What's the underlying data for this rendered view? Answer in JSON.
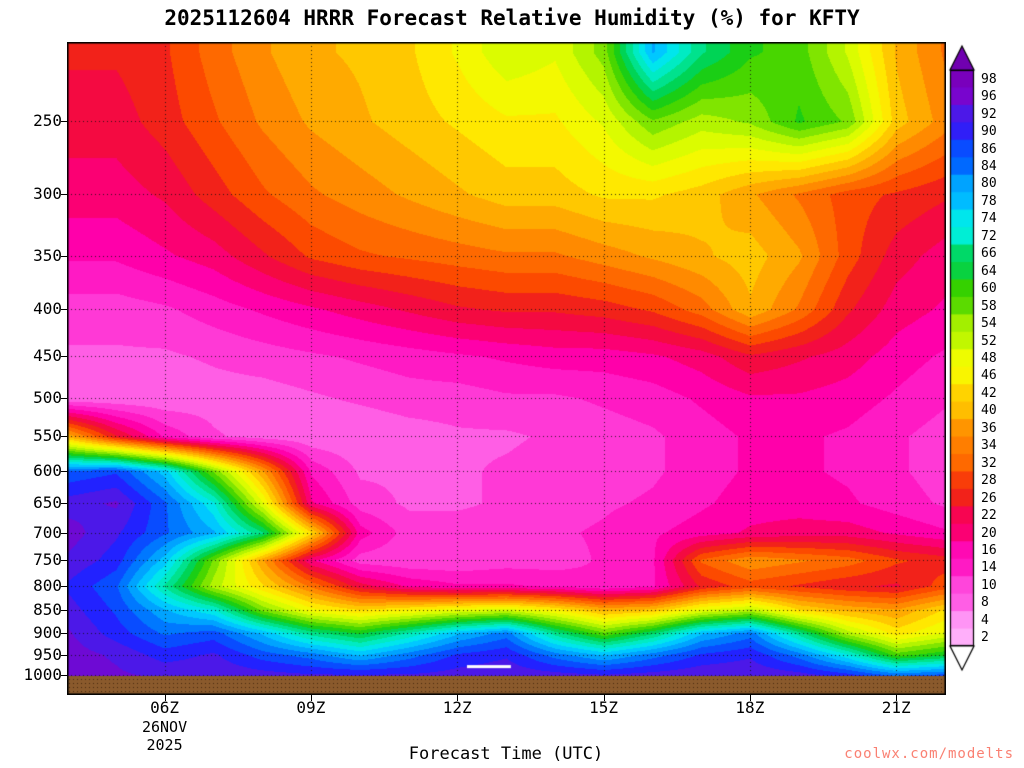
{
  "page": {
    "background": "#ffffff",
    "watermark": "coolwx.com/modelts",
    "watermark_color": "#fa8072"
  },
  "chart": {
    "title": "2025112604 HRRR Forecast Relative Humidity (%) for KFTY",
    "x_axis": {
      "title": "Forecast Time (UTC)",
      "tick_labels": [
        "06Z",
        "09Z",
        "12Z",
        "15Z",
        "18Z",
        "21Z"
      ],
      "date_lines": [
        "26NOV",
        "2025"
      ],
      "date_under_label": "06Z"
    },
    "y_axis": {
      "tick_labels": [
        "250",
        "300",
        "350",
        "400",
        "450",
        "500",
        "550",
        "600",
        "650",
        "700",
        "750",
        "800",
        "850",
        "900",
        "950",
        "1000"
      ]
    },
    "ground_color": "#8a5a2c",
    "ground_stipple_color": "#46290f"
  },
  "chart_data": {
    "type": "heatmap",
    "title": "2025112604 HRRR Forecast Relative Humidity (%) for KFTY",
    "xlabel": "Forecast Time (UTC)",
    "ylabel": "",
    "value_units": "%",
    "x_range_hours": [
      4,
      22
    ],
    "x_tick_hours": [
      6,
      9,
      12,
      15,
      18,
      21
    ],
    "x_tick_labels": [
      "06Z",
      "09Z",
      "12Z",
      "15Z",
      "18Z",
      "21Z"
    ],
    "pressure_range": [
      205,
      1000
    ],
    "y_tick_values": [
      250,
      300,
      350,
      400,
      450,
      500,
      550,
      600,
      650,
      700,
      750,
      800,
      850,
      900,
      950,
      1000
    ],
    "x_hours": [
      4,
      5,
      6,
      7,
      8,
      9,
      10,
      11,
      12,
      13,
      14,
      15,
      16,
      17,
      18,
      19,
      20,
      21,
      22
    ],
    "pressure_levels": [
      210,
      250,
      300,
      350,
      400,
      450,
      500,
      550,
      600,
      650,
      700,
      750,
      800,
      850,
      900,
      950,
      1000
    ],
    "rh_values_percent": [
      [
        26,
        26,
        28,
        33,
        37,
        40,
        41,
        43,
        47,
        52,
        50,
        57,
        80,
        68,
        62,
        60,
        52,
        40,
        34
      ],
      [
        24,
        24,
        27,
        31,
        35,
        38,
        40,
        42,
        44,
        46,
        46,
        50,
        58,
        54,
        56,
        62,
        58,
        42,
        36
      ],
      [
        21,
        21,
        23,
        27,
        31,
        34,
        36,
        38,
        40,
        42,
        42,
        44,
        44,
        42,
        38,
        34,
        30,
        28,
        26
      ],
      [
        17,
        17,
        19,
        21,
        25,
        29,
        31,
        32,
        33,
        34,
        34,
        36,
        38,
        40,
        42,
        38,
        30,
        24,
        21
      ],
      [
        12,
        12,
        13,
        15,
        17,
        19,
        21,
        23,
        25,
        26,
        26,
        27,
        29,
        33,
        40,
        34,
        26,
        21,
        19
      ],
      [
        10,
        10,
        10,
        11,
        12,
        13,
        14,
        15,
        16,
        17,
        18,
        18,
        19,
        21,
        25,
        23,
        21,
        18,
        16
      ],
      [
        8,
        8,
        8,
        9,
        9,
        10,
        11,
        12,
        12,
        13,
        13,
        14,
        15,
        17,
        19,
        19,
        18,
        16,
        14
      ],
      [
        40,
        26,
        16,
        11,
        9,
        8,
        8,
        9,
        10,
        10,
        11,
        12,
        13,
        15,
        17,
        17,
        16,
        14,
        12
      ],
      [
        86,
        88,
        78,
        58,
        38,
        16,
        10,
        10,
        10,
        11,
        12,
        12,
        13,
        15,
        17,
        17,
        16,
        14,
        12
      ],
      [
        93,
        95,
        86,
        74,
        50,
        20,
        12,
        10,
        10,
        11,
        12,
        13,
        14,
        16,
        18,
        18,
        17,
        15,
        13
      ],
      [
        96,
        92,
        86,
        80,
        68,
        44,
        18,
        12,
        12,
        12,
        13,
        14,
        16,
        18,
        20,
        21,
        21,
        19,
        17
      ],
      [
        94,
        90,
        78,
        58,
        38,
        20,
        12,
        11,
        11,
        12,
        12,
        14,
        16,
        32,
        37,
        35,
        33,
        29,
        27
      ],
      [
        91,
        86,
        70,
        54,
        44,
        34,
        24,
        19,
        17,
        17,
        16,
        14,
        16,
        26,
        30,
        28,
        26,
        25,
        30
      ],
      [
        93,
        88,
        80,
        74,
        58,
        48,
        44,
        47,
        50,
        52,
        47,
        40,
        42,
        50,
        54,
        44,
        40,
        38,
        44
      ],
      [
        95,
        90,
        85,
        87,
        79,
        69,
        64,
        71,
        79,
        84,
        69,
        59,
        67,
        79,
        84,
        69,
        54,
        45,
        50
      ],
      [
        96,
        94,
        90,
        92,
        87,
        84,
        79,
        84,
        89,
        91,
        84,
        79,
        84,
        89,
        91,
        84,
        74,
        60,
        64
      ],
      [
        96,
        95,
        94,
        94,
        93,
        92,
        92,
        92,
        93,
        94,
        93,
        92,
        93,
        94,
        94,
        93,
        90,
        85,
        87
      ]
    ],
    "palette_anchors": [
      {
        "v": 0,
        "c": "#ffffff"
      },
      {
        "v": 3,
        "c": "#ffaffa"
      },
      {
        "v": 6,
        "c": "#ff86f2"
      },
      {
        "v": 10,
        "c": "#ff50e0"
      },
      {
        "v": 14,
        "c": "#ff22cc"
      },
      {
        "v": 18,
        "c": "#ff00aa"
      },
      {
        "v": 22,
        "c": "#fa0060"
      },
      {
        "v": 26,
        "c": "#ee1422"
      },
      {
        "v": 30,
        "c": "#fc4a00"
      },
      {
        "v": 34,
        "c": "#ff7300"
      },
      {
        "v": 38,
        "c": "#ffa000"
      },
      {
        "v": 42,
        "c": "#ffc800"
      },
      {
        "v": 46,
        "c": "#fff200"
      },
      {
        "v": 50,
        "c": "#e8ff00"
      },
      {
        "v": 54,
        "c": "#b4f400"
      },
      {
        "v": 58,
        "c": "#6ee000"
      },
      {
        "v": 62,
        "c": "#22cc00"
      },
      {
        "v": 66,
        "c": "#00d455"
      },
      {
        "v": 70,
        "c": "#00e6a0"
      },
      {
        "v": 74,
        "c": "#00f0e6"
      },
      {
        "v": 78,
        "c": "#00c8ff"
      },
      {
        "v": 82,
        "c": "#0096ff"
      },
      {
        "v": 86,
        "c": "#005aff"
      },
      {
        "v": 90,
        "c": "#2222ff"
      },
      {
        "v": 94,
        "c": "#5a14e0"
      },
      {
        "v": 98,
        "c": "#8200c8"
      },
      {
        "v": 100,
        "c": "#7000b0"
      }
    ],
    "colorbar_labels": [
      98,
      96,
      92,
      90,
      86,
      84,
      80,
      78,
      74,
      72,
      66,
      64,
      60,
      58,
      54,
      52,
      48,
      46,
      42,
      40,
      36,
      34,
      32,
      28,
      26,
      22,
      20,
      16,
      14,
      10,
      8,
      4,
      2
    ],
    "white_contour_dash": {
      "hours": [
        12.2,
        13.1
      ],
      "pressure": 978
    }
  }
}
